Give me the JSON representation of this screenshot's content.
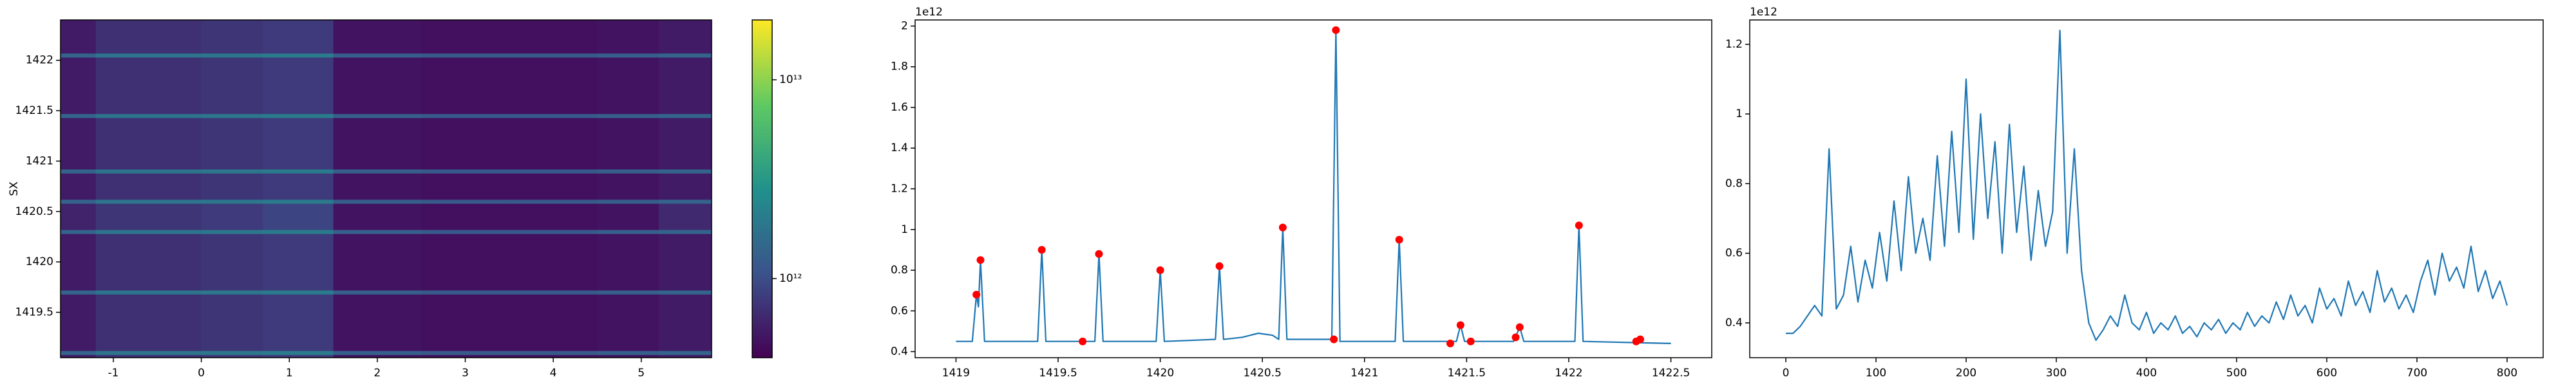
{
  "chart_data": [
    {
      "type": "heatmap",
      "ylabel": "SX",
      "xlim": [
        -1.6,
        5.8
      ],
      "xticks": [
        -1,
        0,
        1,
        2,
        3,
        4,
        5
      ],
      "ylim": [
        1419.05,
        1422.4
      ],
      "yticks": [
        1419.5,
        1420.0,
        1420.5,
        1421.0,
        1421.5,
        1422.0
      ],
      "x_edges": [
        -1.6,
        -1.2,
        0.0,
        0.7,
        1.5,
        2.5,
        3.5,
        4.5,
        5.2,
        5.8
      ],
      "y_edges": [
        1419.05,
        1419.08,
        1419.12,
        1419.68,
        1419.72,
        1420.28,
        1420.32,
        1420.58,
        1420.62,
        1420.88,
        1420.92,
        1421.43,
        1421.47,
        1422.03,
        1422.07,
        1422.4
      ],
      "z": [
        [
          550000000000.0,
          700000000000.0,
          750000000000.0,
          800000000000.0,
          500000000000.0,
          480000000000.0,
          480000000000.0,
          500000000000.0,
          550000000000.0
        ],
        [
          1400000000000.0,
          1800000000000.0,
          1900000000000.0,
          2000000000000.0,
          1300000000000.0,
          1200000000000.0,
          1200000000000.0,
          1300000000000.0,
          1400000000000.0
        ],
        [
          550000000000.0,
          700000000000.0,
          750000000000.0,
          800000000000.0,
          500000000000.0,
          480000000000.0,
          480000000000.0,
          500000000000.0,
          550000000000.0
        ],
        [
          1400000000000.0,
          1800000000000.0,
          1900000000000.0,
          2000000000000.0,
          1300000000000.0,
          1200000000000.0,
          1200000000000.0,
          1300000000000.0,
          1400000000000.0
        ],
        [
          550000000000.0,
          700000000000.0,
          750000000000.0,
          800000000000.0,
          500000000000.0,
          480000000000.0,
          480000000000.0,
          500000000000.0,
          550000000000.0
        ],
        [
          1400000000000.0,
          1800000000000.0,
          1900000000000.0,
          2000000000000.0,
          1300000000000.0,
          1200000000000.0,
          1200000000000.0,
          1300000000000.0,
          1400000000000.0
        ],
        [
          600000000000.0,
          750000000000.0,
          800000000000.0,
          900000000000.0,
          500000000000.0,
          480000000000.0,
          480000000000.0,
          500000000000.0,
          650000000000.0
        ],
        [
          1400000000000.0,
          1800000000000.0,
          1900000000000.0,
          2000000000000.0,
          1300000000000.0,
          1200000000000.0,
          1200000000000.0,
          1300000000000.0,
          1400000000000.0
        ],
        [
          550000000000.0,
          700000000000.0,
          750000000000.0,
          800000000000.0,
          500000000000.0,
          480000000000.0,
          480000000000.0,
          500000000000.0,
          550000000000.0
        ],
        [
          1400000000000.0,
          1800000000000.0,
          1900000000000.0,
          2000000000000.0,
          1300000000000.0,
          1200000000000.0,
          1200000000000.0,
          1300000000000.0,
          1400000000000.0
        ],
        [
          550000000000.0,
          700000000000.0,
          750000000000.0,
          800000000000.0,
          500000000000.0,
          480000000000.0,
          480000000000.0,
          500000000000.0,
          550000000000.0
        ],
        [
          1400000000000.0,
          1800000000000.0,
          1900000000000.0,
          2000000000000.0,
          1300000000000.0,
          1200000000000.0,
          1200000000000.0,
          1300000000000.0,
          1400000000000.0
        ],
        [
          550000000000.0,
          700000000000.0,
          750000000000.0,
          800000000000.0,
          500000000000.0,
          480000000000.0,
          480000000000.0,
          500000000000.0,
          550000000000.0
        ],
        [
          1400000000000.0,
          1800000000000.0,
          1900000000000.0,
          2000000000000.0,
          1300000000000.0,
          1200000000000.0,
          1200000000000.0,
          1300000000000.0,
          1400000000000.0
        ],
        [
          550000000000.0,
          700000000000.0,
          750000000000.0,
          800000000000.0,
          500000000000.0,
          480000000000.0,
          480000000000.0,
          500000000000.0,
          550000000000.0
        ]
      ],
      "cscale": "log",
      "clim": [
        400000000000.0,
        20000000000000.0
      ],
      "cticks": [
        {
          "value": 1000000000000.0,
          "label": "10¹²"
        },
        {
          "value": 10000000000000.0,
          "label": "10¹³"
        }
      ],
      "colormap": [
        "#440154",
        "#3b528b",
        "#21918c",
        "#5ec962",
        "#fde725"
      ]
    },
    {
      "type": "line",
      "y_offset_label": "1e12",
      "xlim": [
        1418.8,
        1422.7
      ],
      "xticks": [
        1419.0,
        1419.5,
        1420.0,
        1420.5,
        1421.0,
        1421.5,
        1422.0,
        1422.5
      ],
      "ylim": [
        0.37,
        2.03
      ],
      "yticks": [
        0.4,
        0.6,
        0.8,
        1.0,
        1.2,
        1.4,
        1.6,
        1.8,
        2.0
      ],
      "series": [
        {
          "type": "line",
          "color": "#1f77b4",
          "x": [
            1419.0,
            1419.08,
            1419.1,
            1419.11,
            1419.12,
            1419.14,
            1419.4,
            1419.42,
            1419.44,
            1419.68,
            1419.7,
            1419.72,
            1419.98,
            1420.0,
            1420.02,
            1420.27,
            1420.29,
            1420.31,
            1420.4,
            1420.48,
            1420.55,
            1420.58,
            1420.6,
            1420.62,
            1420.84,
            1420.86,
            1420.88,
            1421.15,
            1421.17,
            1421.19,
            1421.45,
            1421.47,
            1421.49,
            1421.73,
            1421.76,
            1421.78,
            1422.03,
            1422.05,
            1422.07,
            1422.5
          ],
          "values": [
            0.45,
            0.45,
            0.68,
            0.62,
            0.85,
            0.45,
            0.45,
            0.9,
            0.45,
            0.45,
            0.88,
            0.45,
            0.45,
            0.8,
            0.45,
            0.46,
            0.82,
            0.46,
            0.47,
            0.49,
            0.48,
            0.46,
            1.01,
            0.46,
            0.46,
            1.98,
            0.45,
            0.45,
            0.95,
            0.45,
            0.45,
            0.53,
            0.45,
            0.45,
            0.52,
            0.45,
            0.45,
            1.02,
            0.45,
            0.44
          ]
        },
        {
          "type": "scatter",
          "color": "#ff0000",
          "x": [
            1419.1,
            1419.12,
            1419.42,
            1419.62,
            1419.7,
            1420.0,
            1420.29,
            1420.6,
            1420.85,
            1420.86,
            1421.17,
            1421.42,
            1421.47,
            1421.52,
            1421.74,
            1421.76,
            1422.05,
            1422.33,
            1422.35
          ],
          "values": [
            0.68,
            0.85,
            0.9,
            0.45,
            0.88,
            0.8,
            0.82,
            1.01,
            0.46,
            1.98,
            0.95,
            0.44,
            0.53,
            0.45,
            0.47,
            0.52,
            1.02,
            0.45,
            0.46
          ]
        }
      ]
    },
    {
      "type": "line",
      "y_offset_label": "1e12",
      "xlim": [
        -40,
        840
      ],
      "xticks": [
        0,
        100,
        200,
        300,
        400,
        500,
        600,
        700,
        800
      ],
      "ylim": [
        0.3,
        1.27
      ],
      "yticks": [
        0.4,
        0.6,
        0.8,
        1.0,
        1.2
      ],
      "series": [
        {
          "type": "line",
          "color": "#1f77b4",
          "x": [
            0,
            8,
            16,
            24,
            32,
            40,
            48,
            56,
            64,
            72,
            80,
            88,
            96,
            104,
            112,
            120,
            128,
            136,
            144,
            152,
            160,
            168,
            176,
            184,
            192,
            200,
            208,
            216,
            224,
            232,
            240,
            248,
            256,
            264,
            272,
            280,
            288,
            296,
            304,
            312,
            320,
            328,
            336,
            344,
            352,
            360,
            368,
            376,
            384,
            392,
            400,
            408,
            416,
            424,
            432,
            440,
            448,
            456,
            464,
            472,
            480,
            488,
            496,
            504,
            512,
            520,
            528,
            536,
            544,
            552,
            560,
            568,
            576,
            584,
            592,
            600,
            608,
            616,
            624,
            632,
            640,
            648,
            656,
            664,
            672,
            680,
            688,
            696,
            704,
            712,
            720,
            728,
            736,
            744,
            752,
            760,
            768,
            776,
            784,
            792,
            800
          ],
          "values": [
            0.37,
            0.37,
            0.39,
            0.42,
            0.45,
            0.42,
            0.9,
            0.44,
            0.48,
            0.62,
            0.46,
            0.58,
            0.5,
            0.66,
            0.52,
            0.75,
            0.55,
            0.82,
            0.6,
            0.7,
            0.58,
            0.88,
            0.62,
            0.95,
            0.66,
            1.1,
            0.64,
            1.0,
            0.7,
            0.92,
            0.6,
            0.97,
            0.66,
            0.85,
            0.58,
            0.78,
            0.62,
            0.72,
            1.24,
            0.6,
            0.9,
            0.55,
            0.4,
            0.35,
            0.38,
            0.42,
            0.39,
            0.48,
            0.4,
            0.38,
            0.43,
            0.37,
            0.4,
            0.38,
            0.42,
            0.37,
            0.39,
            0.36,
            0.4,
            0.38,
            0.41,
            0.37,
            0.4,
            0.38,
            0.43,
            0.39,
            0.42,
            0.4,
            0.46,
            0.41,
            0.48,
            0.42,
            0.45,
            0.4,
            0.5,
            0.44,
            0.47,
            0.42,
            0.52,
            0.45,
            0.49,
            0.43,
            0.55,
            0.46,
            0.5,
            0.44,
            0.48,
            0.43,
            0.52,
            0.58,
            0.48,
            0.6,
            0.52,
            0.56,
            0.5,
            0.62,
            0.49,
            0.55,
            0.47,
            0.52,
            0.45
          ]
        }
      ]
    }
  ]
}
